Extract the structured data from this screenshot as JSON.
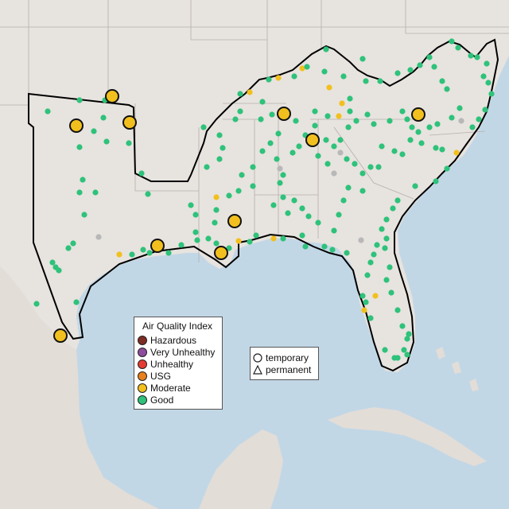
{
  "colors": {
    "ocean": "#c2d7e6",
    "land": "#e7e3df",
    "land_dark": "#d8d1cb",
    "hazardous": "#7e2c24",
    "very_unhealthy": "#8e4c9e",
    "unhealthy": "#e53c31",
    "usg": "#e8801b",
    "moderate": "#f2c01e",
    "good": "#2ec27a",
    "no_data": "#b8b8b8"
  },
  "legend": {
    "title": "Air Quality Index",
    "items": [
      {
        "label": "Hazardous",
        "color_key": "hazardous"
      },
      {
        "label": "Very Unhealthy",
        "color_key": "very_unhealthy"
      },
      {
        "label": "Unhealthy",
        "color_key": "unhealthy"
      },
      {
        "label": "USG",
        "color_key": "usg"
      },
      {
        "label": "Moderate",
        "color_key": "moderate"
      },
      {
        "label": "Good",
        "color_key": "good"
      }
    ],
    "monitor_types": [
      {
        "label": "temporary",
        "shape": "circle"
      },
      {
        "label": "permanent",
        "shape": "triangle"
      }
    ]
  },
  "map": {
    "large_monitor_category": "moderate",
    "small_monitor_categories": [
      "good",
      "moderate",
      "no_data"
    ]
  }
}
